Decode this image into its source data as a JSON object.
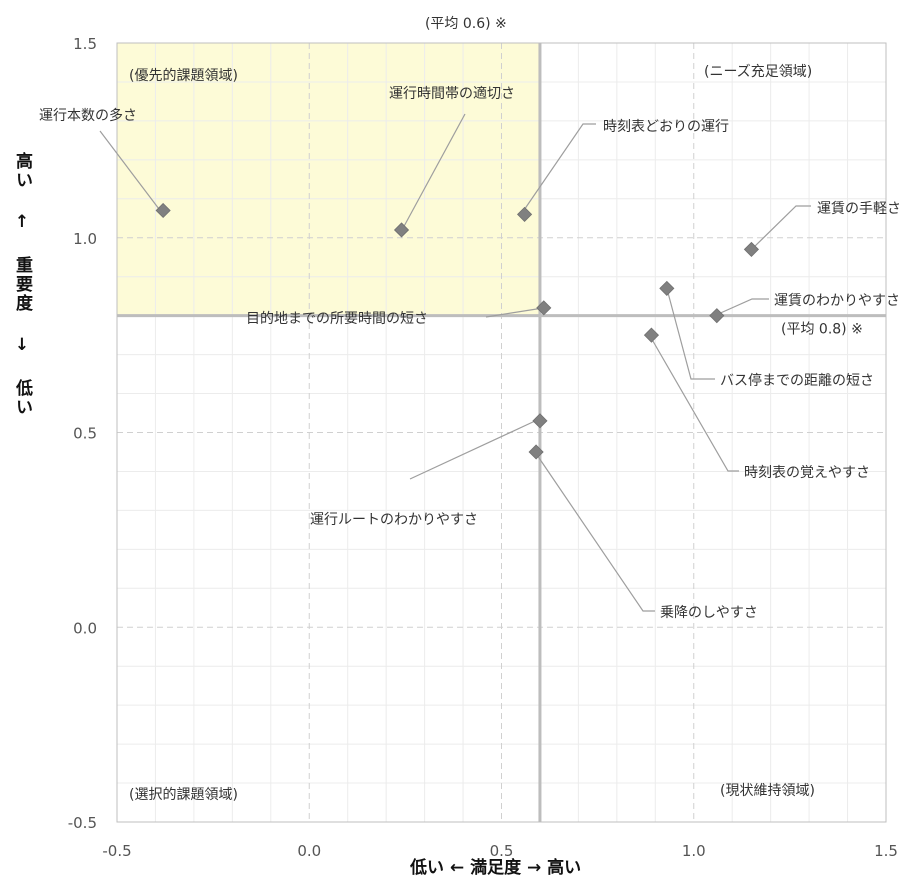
{
  "chart_data": {
    "type": "scatter",
    "title": "",
    "xlabel": "低い ← 満足度 → 高い",
    "ylabel": "高い ↑ 重要度 ↓ 低い",
    "xlim": [
      -0.5,
      1.5
    ],
    "ylim": [
      -0.5,
      1.5
    ],
    "xticks": [
      "-0.5",
      "0.0",
      "0.5",
      "1.0",
      "1.5"
    ],
    "yticks": [
      "-0.5",
      "0.0",
      "0.5",
      "1.0",
      "1.5"
    ],
    "grid": true,
    "averages": {
      "x": 0.6,
      "x_label": "(平均 0.6) ※",
      "y": 0.8,
      "y_label": "(平均 0.8) ※"
    },
    "quadrants": {
      "top_left": "(優先的課題領域)",
      "top_right": "(ニーズ充足領域)",
      "bottom_left": "(選択的課題領域)",
      "bottom_right": "(現状維持領域)"
    },
    "highlight_color": "#fdfbd7",
    "marker_color": "#808080",
    "points": [
      {
        "label": "運行本数の多さ",
        "x": -0.38,
        "y": 1.07
      },
      {
        "label": "運行時間帯の適切さ",
        "x": 0.24,
        "y": 1.02
      },
      {
        "label": "時刻表どおりの運行",
        "x": 0.56,
        "y": 1.06
      },
      {
        "label": "運賃の手軽さ",
        "x": 1.15,
        "y": 0.97
      },
      {
        "label": "目的地までの所要時間の短さ",
        "x": 0.61,
        "y": 0.82
      },
      {
        "label": "運賃のわかりやすさ",
        "x": 1.06,
        "y": 0.8
      },
      {
        "label": "バス停までの距離の短さ",
        "x": 0.93,
        "y": 0.87
      },
      {
        "label": "時刻表の覚えやすさ",
        "x": 0.89,
        "y": 0.75
      },
      {
        "label": "運行ルートのわかりやすさ",
        "x": 0.6,
        "y": 0.53
      },
      {
        "label": "乗降のしやすさ",
        "x": 0.59,
        "y": 0.45
      }
    ]
  }
}
